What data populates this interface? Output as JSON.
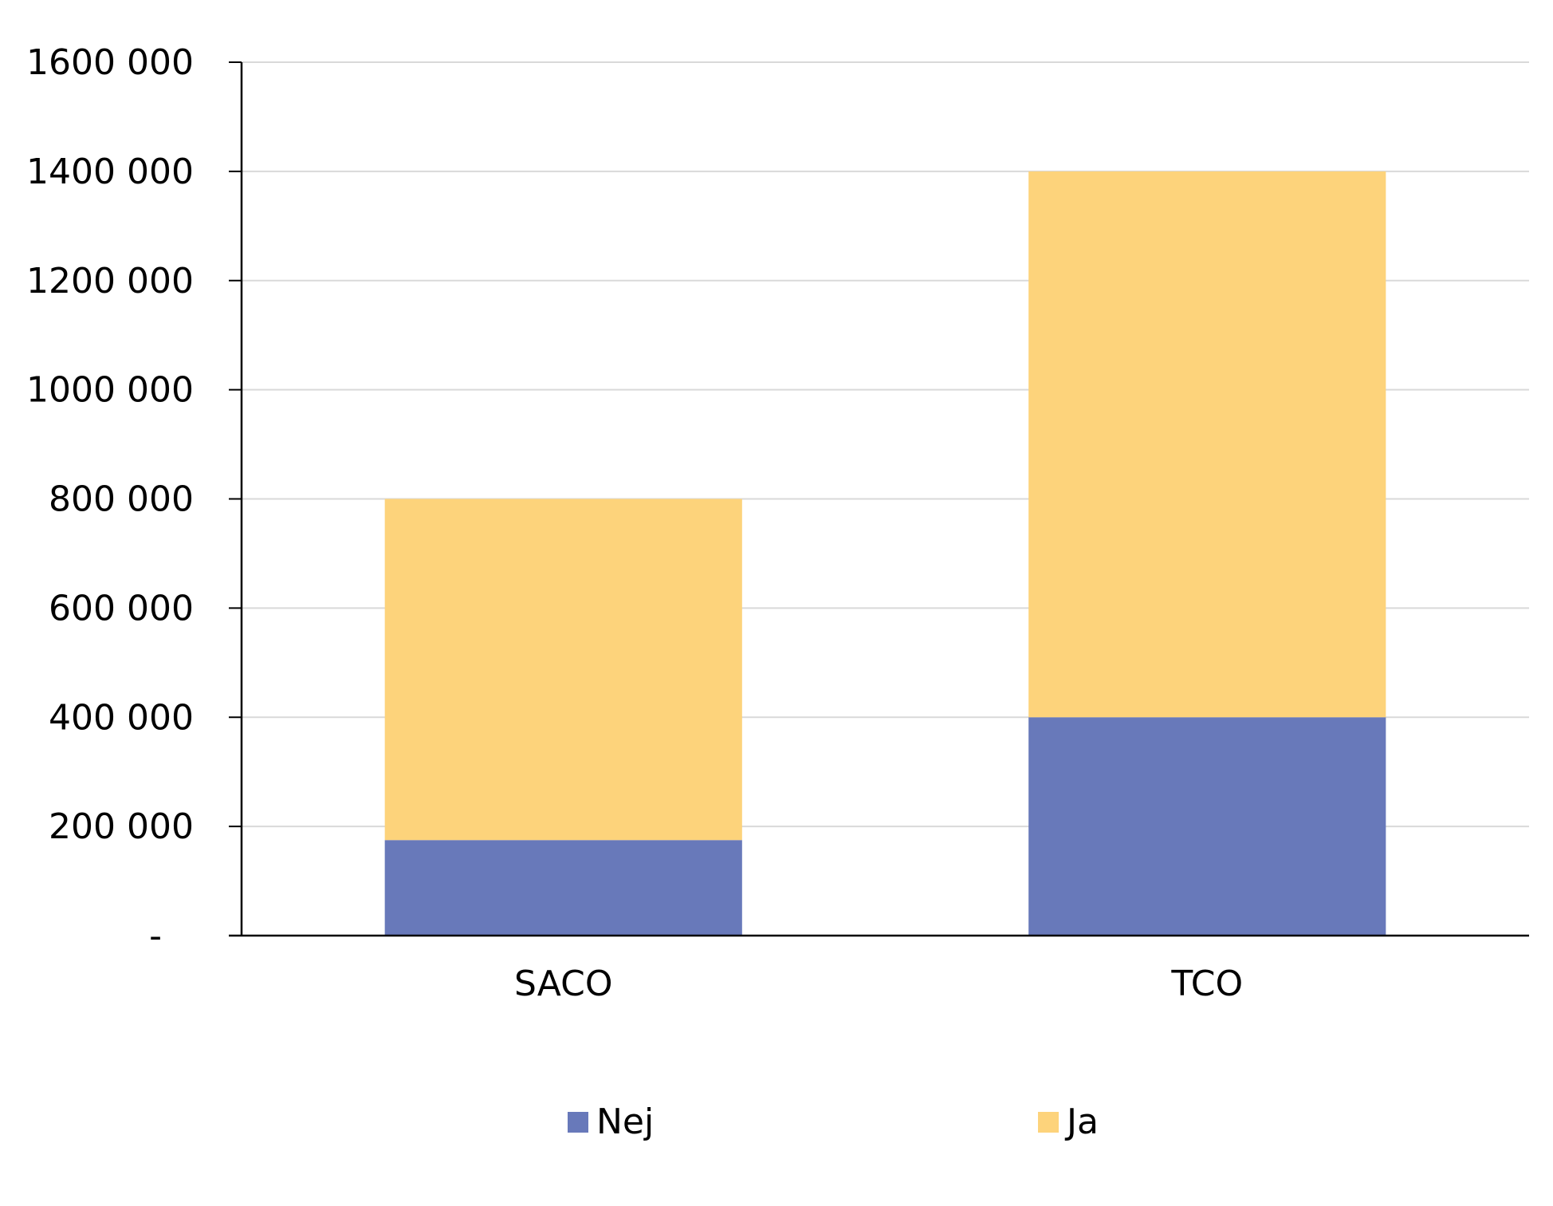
{
  "chart_data": {
    "type": "bar",
    "stacked": true,
    "title": "",
    "xlabel": "",
    "ylabel": "",
    "categories": [
      "SACO",
      "TCO"
    ],
    "series": [
      {
        "name": "Nej",
        "values": [
          175000,
          400000
        ],
        "color": "#6879BA"
      },
      {
        "name": "Ja",
        "values": [
          625000,
          1000000
        ],
        "color": "#FDD37B"
      }
    ],
    "ylim": [
      0,
      1600000
    ],
    "yticks": [
      0,
      200000,
      400000,
      600000,
      800000,
      1000000,
      1200000,
      1400000,
      1600000
    ],
    "ytick_labels": [
      "-",
      "200 000",
      "400 000",
      "600 000",
      "800 000",
      "1000 000",
      "1200 000",
      "1400 000",
      "1600 000"
    ],
    "grid": true,
    "grid_color": "#D9D9D9",
    "legend_position": "bottom"
  }
}
